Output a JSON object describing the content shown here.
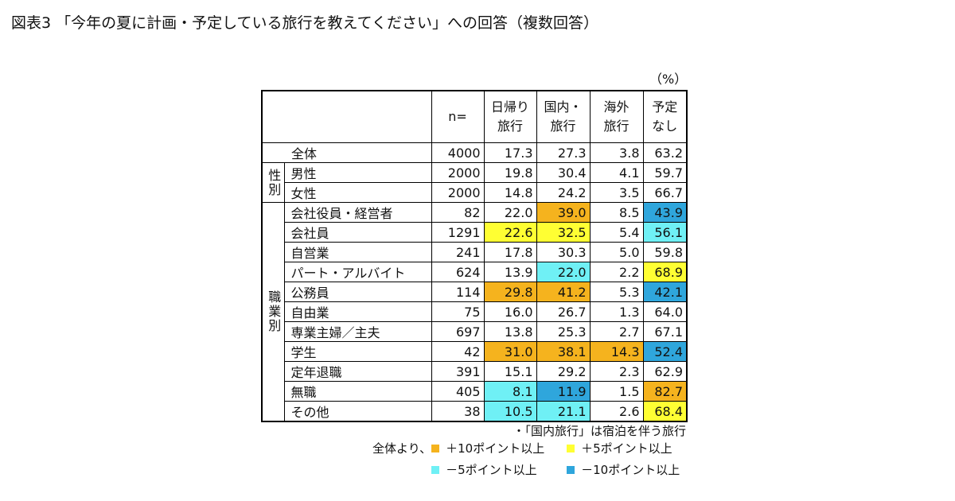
{
  "title": "図表3 「今年の夏に計画・予定している旅行を教えてください」への回答（複数回答）",
  "unit": "（%）",
  "table": {
    "header": [
      "n=",
      [
        "日帰り",
        "旅行"
      ],
      [
        "国内・",
        "旅行"
      ],
      [
        "海外",
        "旅行"
      ],
      [
        "予定",
        "なし"
      ]
    ],
    "sections": [
      {
        "rows": [
          {
            "label": "全体",
            "n": "4000",
            "values": [
              "17.3",
              "27.3",
              "3.8",
              "63.2"
            ],
            "highlights": [
              null,
              null,
              null,
              null
            ]
          }
        ]
      },
      {
        "label": "性別",
        "rows": [
          {
            "label": "男性",
            "n": "2000",
            "values": [
              "19.8",
              "30.4",
              "4.1",
              "59.7"
            ],
            "highlights": [
              null,
              null,
              null,
              null
            ]
          },
          {
            "label": "女性",
            "n": "2000",
            "values": [
              "14.8",
              "24.2",
              "3.5",
              "66.7"
            ],
            "highlights": [
              null,
              null,
              null,
              null
            ]
          }
        ]
      },
      {
        "label": "職業別",
        "rows": [
          {
            "label": "会社役員・経営者",
            "n": "82",
            "values": [
              "22.0",
              "39.0",
              "8.5",
              "43.9"
            ],
            "highlights": [
              null,
              0,
              null,
              3
            ]
          },
          {
            "label": "会社員",
            "n": "1291",
            "values": [
              "22.6",
              "32.5",
              "5.4",
              "56.1"
            ],
            "highlights": [
              1,
              1,
              null,
              2
            ]
          },
          {
            "label": "自営業",
            "n": "241",
            "values": [
              "17.8",
              "30.3",
              "5.0",
              "59.8"
            ],
            "highlights": [
              null,
              null,
              null,
              null
            ]
          },
          {
            "label": "パート・アルバイト",
            "n": "624",
            "values": [
              "13.9",
              "22.0",
              "2.2",
              "68.9"
            ],
            "highlights": [
              null,
              2,
              null,
              1
            ]
          },
          {
            "label": "公務員",
            "n": "114",
            "values": [
              "29.8",
              "41.2",
              "5.3",
              "42.1"
            ],
            "highlights": [
              0,
              0,
              null,
              3
            ]
          },
          {
            "label": "自由業",
            "n": "75",
            "values": [
              "16.0",
              "26.7",
              "1.3",
              "64.0"
            ],
            "highlights": [
              null,
              null,
              null,
              null
            ]
          },
          {
            "label": "専業主婦／主夫",
            "n": "697",
            "values": [
              "13.8",
              "25.3",
              "2.7",
              "67.1"
            ],
            "highlights": [
              null,
              null,
              null,
              null
            ]
          },
          {
            "label": "学生",
            "n": "42",
            "values": [
              "31.0",
              "38.1",
              "14.3",
              "52.4"
            ],
            "highlights": [
              0,
              0,
              0,
              3
            ]
          },
          {
            "label": "定年退職",
            "n": "391",
            "values": [
              "15.1",
              "29.2",
              "2.3",
              "62.9"
            ],
            "highlights": [
              null,
              null,
              null,
              null
            ]
          },
          {
            "label": "無職",
            "n": "405",
            "values": [
              "8.1",
              "11.9",
              "1.5",
              "82.7"
            ],
            "highlights": [
              2,
              3,
              null,
              0
            ]
          },
          {
            "label": "その他",
            "n": "38",
            "values": [
              "10.5",
              "21.1",
              "2.6",
              "68.4"
            ],
            "highlights": [
              2,
              2,
              null,
              1
            ]
          }
        ]
      }
    ]
  },
  "note": "・「国内旅行」は宿泊を伴う旅行",
  "legend": {
    "prefix": "全体より、",
    "items": [
      {
        "label": "＋10ポイント以上",
        "color": "#f5b31e"
      },
      {
        "label": "＋5ポイント以上",
        "color": "#ffff33"
      },
      {
        "label": "－5ポイント以上",
        "color": "#6ff0f5"
      },
      {
        "label": "－10ポイント以上",
        "color": "#2fa6dc"
      }
    ]
  }
}
